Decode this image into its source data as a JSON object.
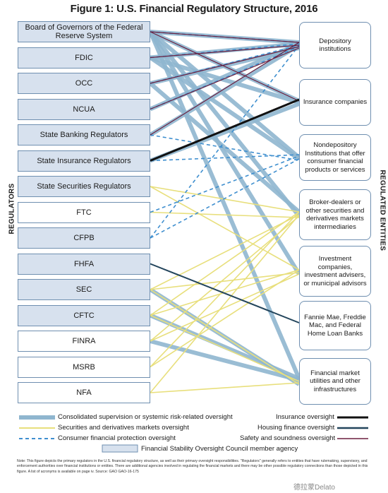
{
  "title": "Figure 1: U.S. Financial Regulatory Structure, 2016",
  "left_axis_label": "REGULATORS",
  "right_axis_label": "REGULATED ENTITIES",
  "colors": {
    "consolidated": "#8fb6cf",
    "securities": "#e8df7c",
    "consumer": "#3f8fcf",
    "insurance": "#111111",
    "housing": "#23455c",
    "safety": "#6b1f3e",
    "fsoc_fill": "#d7e1ee"
  },
  "regulators": [
    {
      "id": "frb",
      "label": "Board of Governors of the Federal Reserve System",
      "fsoc": true
    },
    {
      "id": "fdic",
      "label": "FDIC",
      "fsoc": true
    },
    {
      "id": "occ",
      "label": "OCC",
      "fsoc": true
    },
    {
      "id": "ncua",
      "label": "NCUA",
      "fsoc": true
    },
    {
      "id": "sbr",
      "label": "State Banking Regulators",
      "fsoc": true
    },
    {
      "id": "sir",
      "label": "State Insurance Regulators",
      "fsoc": true
    },
    {
      "id": "ssr",
      "label": "State Securities Regulators",
      "fsoc": true
    },
    {
      "id": "ftc",
      "label": "FTC",
      "fsoc": false
    },
    {
      "id": "cfpb",
      "label": "CFPB",
      "fsoc": true
    },
    {
      "id": "fhfa",
      "label": "FHFA",
      "fsoc": true
    },
    {
      "id": "sec",
      "label": "SEC",
      "fsoc": true
    },
    {
      "id": "cftc",
      "label": "CFTC",
      "fsoc": true
    },
    {
      "id": "finra",
      "label": "FINRA",
      "fsoc": false
    },
    {
      "id": "msrb",
      "label": "MSRB",
      "fsoc": false
    },
    {
      "id": "nfa",
      "label": "NFA",
      "fsoc": false
    }
  ],
  "entities": [
    {
      "id": "dep",
      "label": "Depository institutions"
    },
    {
      "id": "ins",
      "label": "Insurance companies"
    },
    {
      "id": "nondep",
      "label": "Nondepository Institutions that offer consumer financial products or services"
    },
    {
      "id": "broker",
      "label": "Broker-dealers or other securities and derivatives markets intermediaries"
    },
    {
      "id": "invest",
      "label": "Investment companies, investment advisers, or municipal advisors"
    },
    {
      "id": "fannie",
      "label": "Fannie Mae, Freddie Mac, and Federal Home Loan Banks"
    },
    {
      "id": "fmu",
      "label": "Financial market utilities and other infrastructures"
    }
  ],
  "connections": {
    "consolidated": [
      [
        "frb",
        "dep"
      ],
      [
        "frb",
        "ins"
      ],
      [
        "frb",
        "nondep"
      ],
      [
        "frb",
        "broker"
      ],
      [
        "frb",
        "invest"
      ],
      [
        "frb",
        "fmu"
      ],
      [
        "fdic",
        "dep"
      ],
      [
        "fdic",
        "ins"
      ],
      [
        "fdic",
        "nondep"
      ],
      [
        "occ",
        "dep"
      ],
      [
        "occ",
        "broker"
      ],
      [
        "ncua",
        "dep"
      ],
      [
        "sbr",
        "dep"
      ],
      [
        "sir",
        "ins"
      ],
      [
        "sec",
        "fmu"
      ],
      [
        "cftc",
        "fmu"
      ],
      [
        "finra",
        "fmu"
      ]
    ],
    "securities": [
      [
        "ssr",
        "broker"
      ],
      [
        "ssr",
        "invest"
      ],
      [
        "sec",
        "broker"
      ],
      [
        "sec",
        "invest"
      ],
      [
        "sec",
        "fmu"
      ],
      [
        "cftc",
        "broker"
      ],
      [
        "cftc",
        "invest"
      ],
      [
        "cftc",
        "fmu"
      ],
      [
        "finra",
        "broker"
      ],
      [
        "finra",
        "invest"
      ],
      [
        "msrb",
        "broker"
      ],
      [
        "msrb",
        "invest"
      ],
      [
        "nfa",
        "broker"
      ],
      [
        "nfa",
        "fmu"
      ],
      [
        "ftc",
        "broker"
      ]
    ],
    "consumer": [
      [
        "frb",
        "dep"
      ],
      [
        "fdic",
        "dep"
      ],
      [
        "occ",
        "dep"
      ],
      [
        "ncua",
        "dep"
      ],
      [
        "sbr",
        "nondep"
      ],
      [
        "sir",
        "nondep"
      ],
      [
        "ftc",
        "nondep"
      ],
      [
        "cfpb",
        "dep"
      ],
      [
        "cfpb",
        "nondep"
      ]
    ],
    "insurance": [
      [
        "sir",
        "ins"
      ]
    ],
    "housing": [
      [
        "fhfa",
        "fannie"
      ]
    ],
    "safety": [
      [
        "frb",
        "dep"
      ],
      [
        "frb",
        "ins"
      ],
      [
        "fdic",
        "dep"
      ],
      [
        "occ",
        "dep"
      ],
      [
        "ncua",
        "dep"
      ],
      [
        "sbr",
        "dep"
      ]
    ]
  },
  "legend": {
    "consolidated": "Consolidated supervision or systemic risk-related oversight",
    "securities": "Securities and derivatives markets oversight",
    "consumer": "Consumer financial protection oversight",
    "fsoc": "Financial Stability Oversight Council member agency",
    "insurance": "Insurance oversight",
    "housing": "Housing finance oversight",
    "safety": "Safety and soundness oversight"
  },
  "note": "Note: This figure depicts the primary regulators in the U.S. financial regulatory structure, as well as their primary oversight responsibilities. \"Regulators\" generally refers to entities that have rulemaking, supervisory, and enforcement authorities over financial institutions or entities. There are additional agencies involved in regulating the financial markets and there may be other possible regulatory connections than those depicted in this figure. A list of acronyms is available on page iv. Source: GAO GAO-16-175",
  "watermark": "德拉蒙Delato"
}
